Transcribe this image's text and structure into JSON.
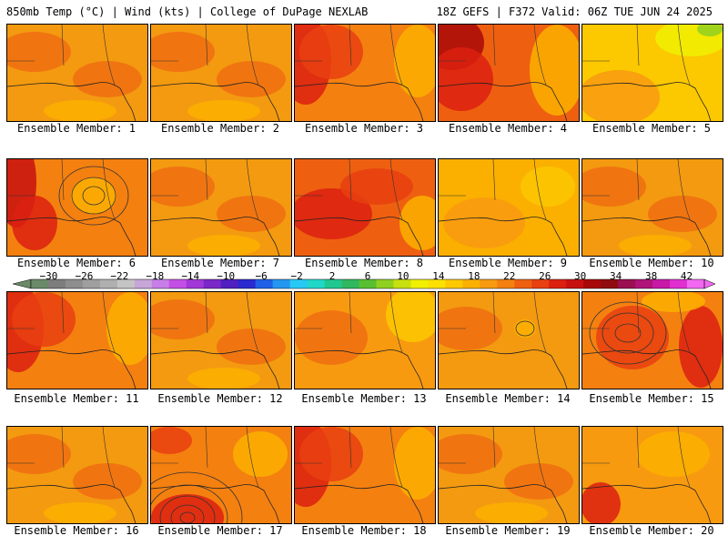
{
  "header": {
    "left_text": "850mb Temp (°C) | Wind (kts) | College of DuPage NEXLAB",
    "right_text": "18Z GEFS | F372 Valid: 06Z TUE JUN 24 2025"
  },
  "members": [
    {
      "label": "Ensemble Member: 1",
      "theme": "uniform-warm"
    },
    {
      "label": "Ensemble Member: 2",
      "theme": "uniform-warm"
    },
    {
      "label": "Ensemble Member: 3",
      "theme": "hot-west"
    },
    {
      "label": "Ensemble Member: 4",
      "theme": "very-hot-west"
    },
    {
      "label": "Ensemble Member: 5",
      "theme": "cool-northeast"
    },
    {
      "label": "Ensemble Member: 6",
      "theme": "hot-west-closed-low"
    },
    {
      "label": "Ensemble Member: 7",
      "theme": "uniform-warm"
    },
    {
      "label": "Ensemble Member: 8",
      "theme": "hot-central"
    },
    {
      "label": "Ensemble Member: 9",
      "theme": "cooler"
    },
    {
      "label": "Ensemble Member: 10",
      "theme": "uniform-warm"
    },
    {
      "label": "Ensemble Member: 11",
      "theme": "hot-west"
    },
    {
      "label": "Ensemble Member: 12",
      "theme": "uniform-warm"
    },
    {
      "label": "Ensemble Member: 13",
      "theme": "cooler-east"
    },
    {
      "label": "Ensemble Member: 14",
      "theme": "uniform-warm-low"
    },
    {
      "label": "Ensemble Member: 15",
      "theme": "hot-closed-low"
    },
    {
      "label": "Ensemble Member: 16",
      "theme": "uniform-warm"
    },
    {
      "label": "Ensemble Member: 17",
      "theme": "hot-south-low"
    },
    {
      "label": "Ensemble Member: 18",
      "theme": "hot-west"
    },
    {
      "label": "Ensemble Member: 19",
      "theme": "uniform-warm"
    },
    {
      "label": "Ensemble Member: 20",
      "theme": "hot-southwest"
    }
  ],
  "chart_data": {
    "type": "heatmap",
    "title": "850mb Temp (°C) | Wind (kts)",
    "colorbar": {
      "tick_labels": [
        "−30",
        "−26",
        "−22",
        "−18",
        "−14",
        "−10",
        "−6",
        "−2",
        "2",
        "6",
        "10",
        "14",
        "18",
        "22",
        "26",
        "30",
        "34",
        "38",
        "42"
      ],
      "range": [
        -32,
        44
      ],
      "step": 2,
      "colors": [
        "#6a8a6a",
        "#7d7d7d",
        "#8e8e8e",
        "#9f9f9f",
        "#b0b0b0",
        "#c4c4c4",
        "#c7a6d8",
        "#c87ee8",
        "#c44fe6",
        "#a238d8",
        "#7a28c8",
        "#5020c0",
        "#2a2ad0",
        "#2060e8",
        "#2496f0",
        "#28c8f4",
        "#20d8c8",
        "#20c890",
        "#30b860",
        "#58c030",
        "#90d020",
        "#c8e010",
        "#f0f000",
        "#fce000",
        "#fcc800",
        "#fbb000",
        "#f89a10",
        "#f48010",
        "#ee6010",
        "#e84010",
        "#dc2010",
        "#c81010",
        "#a80808",
        "#900c10",
        "#9a1050",
        "#b01478",
        "#c818a8",
        "#e030d0",
        "#f268f0"
      ]
    },
    "ensemble_members": 20
  }
}
